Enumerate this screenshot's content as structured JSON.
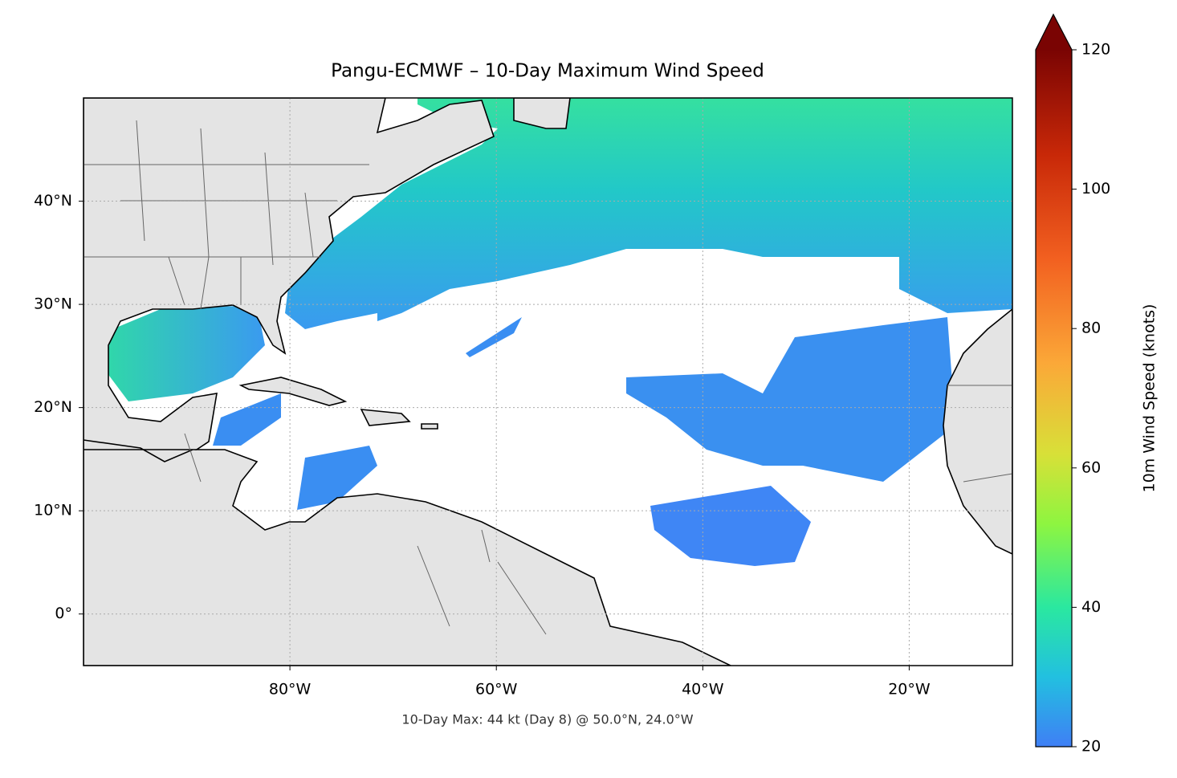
{
  "title": "Pangu-ECMWF – 10-Day Maximum Wind Speed",
  "map": {
    "lon_range": [
      -100,
      -10
    ],
    "lat_range": [
      -5,
      50
    ],
    "lon_ticks": [
      {
        "value": -80,
        "label": "80°W"
      },
      {
        "value": -60,
        "label": "60°W"
      },
      {
        "value": -40,
        "label": "40°W"
      },
      {
        "value": -20,
        "label": "20°W"
      }
    ],
    "lat_ticks": [
      {
        "value": 0,
        "label": "0°"
      },
      {
        "value": 10,
        "label": "10°N"
      },
      {
        "value": 20,
        "label": "20°N"
      },
      {
        "value": 30,
        "label": "30°N"
      },
      {
        "value": 40,
        "label": "40°N"
      }
    ]
  },
  "colorbar": {
    "label": "10m Wind Speed (knots)",
    "range": [
      20,
      120
    ],
    "ticks": [
      20,
      40,
      60,
      80,
      100,
      120
    ]
  },
  "footer": "10-Day Max: 44 kt (Day 8) @ 50.0°N, 24.0°W"
}
